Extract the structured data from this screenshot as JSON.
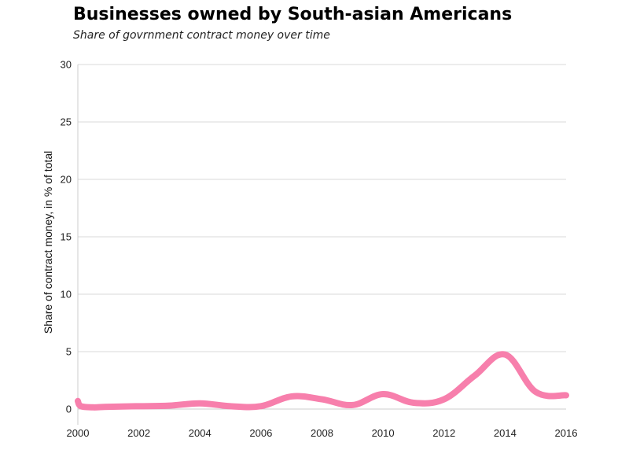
{
  "chart_data": {
    "type": "line",
    "title": "Businesses owned by South-asian Americans",
    "subtitle": "Share of govrnment contract money over time",
    "xlabel": "",
    "ylabel": "Share of contract money, in % of total",
    "xlim": [
      2000,
      2016
    ],
    "ylim": [
      0,
      30
    ],
    "x_ticks": [
      "2000",
      "2002",
      "2004",
      "2006",
      "2008",
      "2010",
      "2012",
      "2014",
      "2016"
    ],
    "y_ticks": [
      "0",
      "5",
      "10",
      "15",
      "20",
      "25",
      "30"
    ],
    "grid": true,
    "legend": "none",
    "line_color": "#f77fac",
    "series": [
      {
        "x": [
          2000,
          2000.1,
          2000.5,
          2001,
          2002,
          2003,
          2004,
          2005,
          2006,
          2007,
          2008,
          2009,
          2010,
          2011,
          2012,
          2013,
          2014,
          2015,
          2016
        ],
        "values": [
          0.7,
          0.25,
          0.15,
          0.2,
          0.25,
          0.3,
          0.5,
          0.25,
          0.25,
          1.1,
          0.85,
          0.35,
          1.3,
          0.55,
          0.85,
          2.9,
          4.75,
          1.5,
          1.2
        ]
      }
    ]
  }
}
